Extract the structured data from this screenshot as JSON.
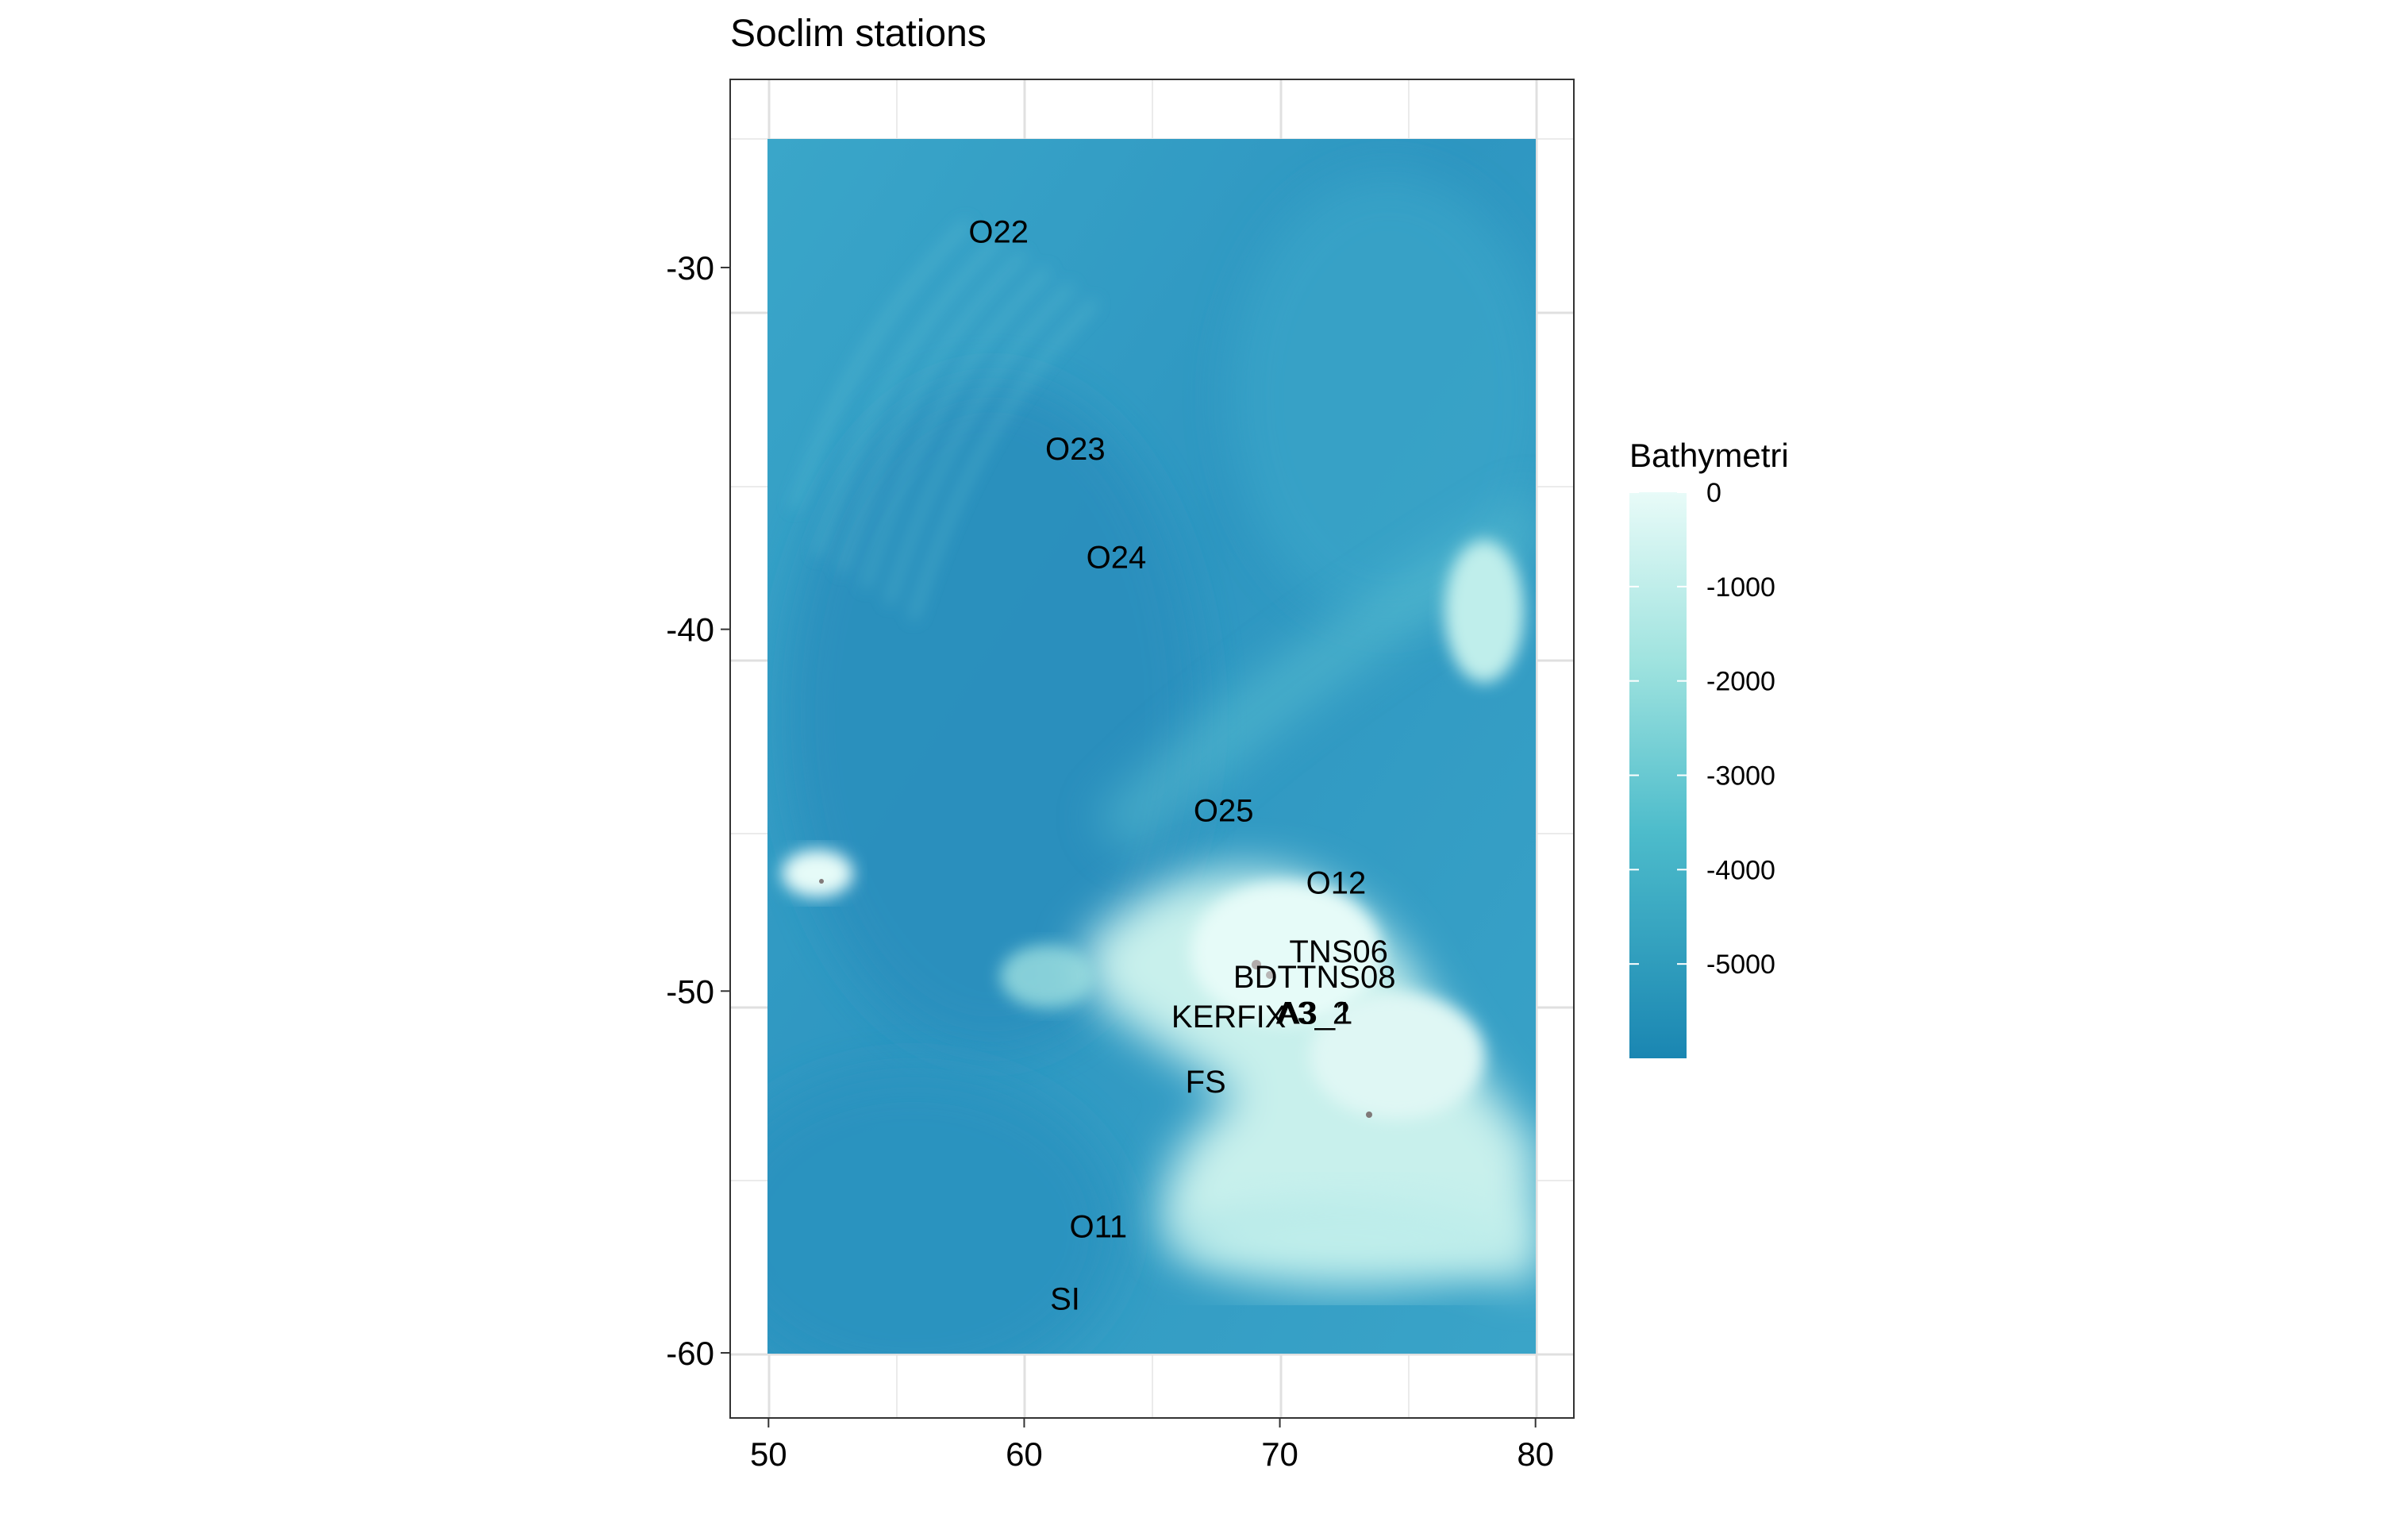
{
  "title": "Soclim stations",
  "chart_data": {
    "type": "scatter",
    "title": "Soclim stations",
    "xlabel": "",
    "ylabel": "",
    "xlim": [
      48.5,
      81.5
    ],
    "ylim": [
      -61.8,
      -24.8
    ],
    "raster_extent": {
      "x": [
        50,
        80
      ],
      "y": [
        -60,
        -25
      ]
    },
    "x_ticks": [
      50,
      60,
      70,
      80
    ],
    "x_tick_labels": [
      "50",
      "60",
      "70",
      "80"
    ],
    "y_ticks": [
      -30,
      -40,
      -50,
      -60
    ],
    "y_tick_labels": [
      "-30",
      "-40",
      "-50",
      "-60"
    ],
    "grid": true,
    "legend_position": "right",
    "stations": [
      {
        "label": "O22",
        "x": 59.0,
        "y": -29.0
      },
      {
        "label": "O23",
        "x": 62.0,
        "y": -35.0
      },
      {
        "label": "O24",
        "x": 63.6,
        "y": -38.0
      },
      {
        "label": "O25",
        "x": 67.8,
        "y": -45.0
      },
      {
        "label": "O12",
        "x": 72.2,
        "y": -47.0
      },
      {
        "label": "TNS06",
        "x": 72.3,
        "y": -48.9
      },
      {
        "label": "TNS08",
        "x": 72.6,
        "y": -49.6
      },
      {
        "label": "BDTT",
        "x": 69.8,
        "y": -49.6
      },
      {
        "label": "KERFIX",
        "x": 68.0,
        "y": -50.7
      },
      {
        "label": "A3_2",
        "x": 71.3,
        "y": -50.6
      },
      {
        "label": "A3_1",
        "x": 71.4,
        "y": -50.6
      },
      {
        "label": "FS",
        "x": 67.1,
        "y": -52.5
      },
      {
        "label": "O11",
        "x": 62.9,
        "y": -56.5
      },
      {
        "label": "SI",
        "x": 61.6,
        "y": -58.5
      }
    ]
  },
  "legend": {
    "title": "Bathymetri",
    "labels": [
      "0",
      "-1000",
      "-2000",
      "-3000",
      "-4000",
      "-5000"
    ],
    "colors": {
      "shallow": "#e8fbf8",
      "mid": "#59c6cf",
      "deep": "#1a86b2"
    }
  },
  "colors": {
    "panel_background": "#ffffff",
    "panel_border": "#333333",
    "grid": "#ebebeb",
    "ocean_deep": "#2a93bf",
    "ocean_mid": "#46aed0",
    "plateau": "#c8f0ec"
  }
}
